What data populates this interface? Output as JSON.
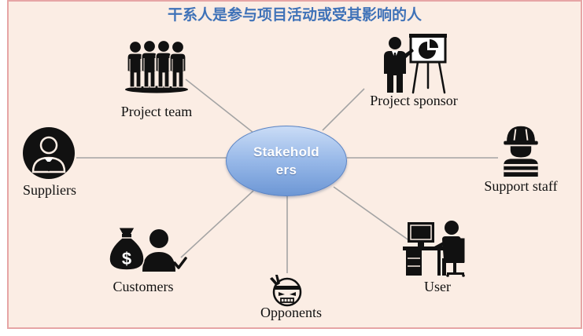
{
  "title": "干系人是参与项目活动或受其影响的人",
  "hub": {
    "line1": "Stakehold",
    "line2": "ers"
  },
  "nodes": [
    {
      "label": "Project team",
      "icon": "team-icon"
    },
    {
      "label": "Project sponsor",
      "icon": "presenter-easel-icon"
    },
    {
      "label": "Suppliers",
      "icon": "businessman-circle-icon"
    },
    {
      "label": "Support staff",
      "icon": "hard-hat-worker-icon"
    },
    {
      "label": "Customers",
      "icon": "money-bag-customer-icon",
      "bag_symbol": "$"
    },
    {
      "label": "Opponents",
      "icon": "angry-face-icon"
    },
    {
      "label": "User",
      "icon": "computer-user-icon"
    }
  ],
  "colors": {
    "background": "#fbede4",
    "frame_border": "#e6a5a5",
    "title": "#3f72b8",
    "hub_fill_top": "#cadcf6",
    "hub_fill_bottom": "#6d97d5",
    "hub_border": "#5b84c4",
    "connector": "#a4a4a4",
    "icon": "#111111"
  }
}
